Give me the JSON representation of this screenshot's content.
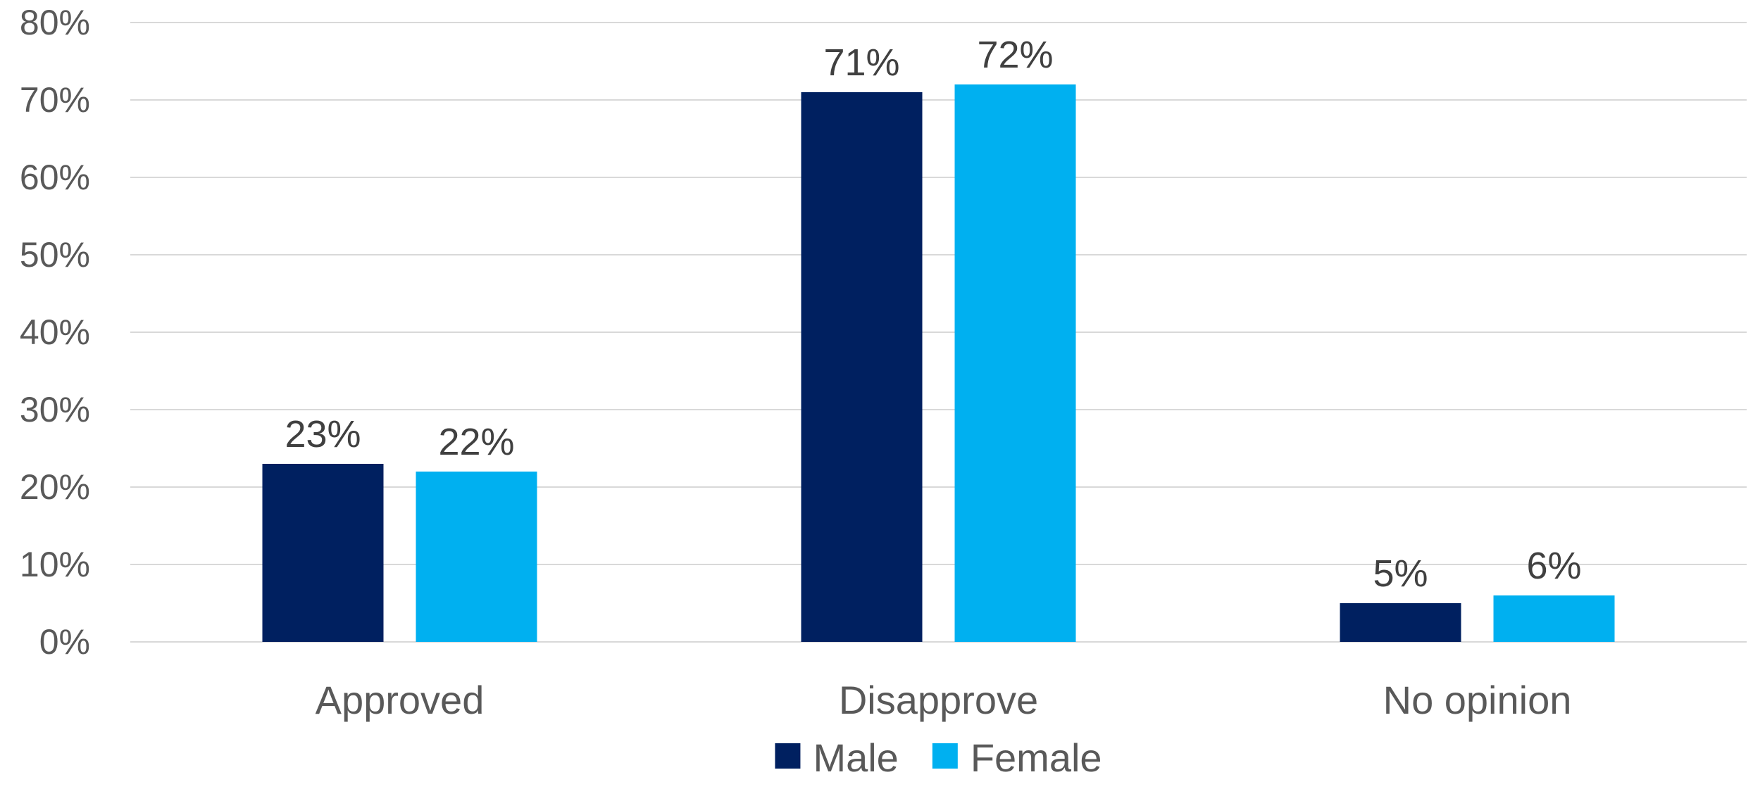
{
  "chart_data": {
    "type": "bar",
    "categories": [
      "Approved",
      "Disapprove",
      "No opinion"
    ],
    "series": [
      {
        "name": "Male",
        "color": "#002060",
        "values": [
          23,
          71,
          5
        ],
        "labels": [
          "23%",
          "71%",
          "5%"
        ]
      },
      {
        "name": "Female",
        "color": "#00B0F0",
        "values": [
          22,
          72,
          6
        ],
        "labels": [
          "22%",
          "72%",
          "6%"
        ]
      }
    ],
    "yticks": [
      "0%",
      "10%",
      "20%",
      "30%",
      "40%",
      "50%",
      "60%",
      "70%",
      "80%"
    ],
    "ylim": [
      0,
      80
    ],
    "grid": true,
    "legend_position": "bottom"
  }
}
